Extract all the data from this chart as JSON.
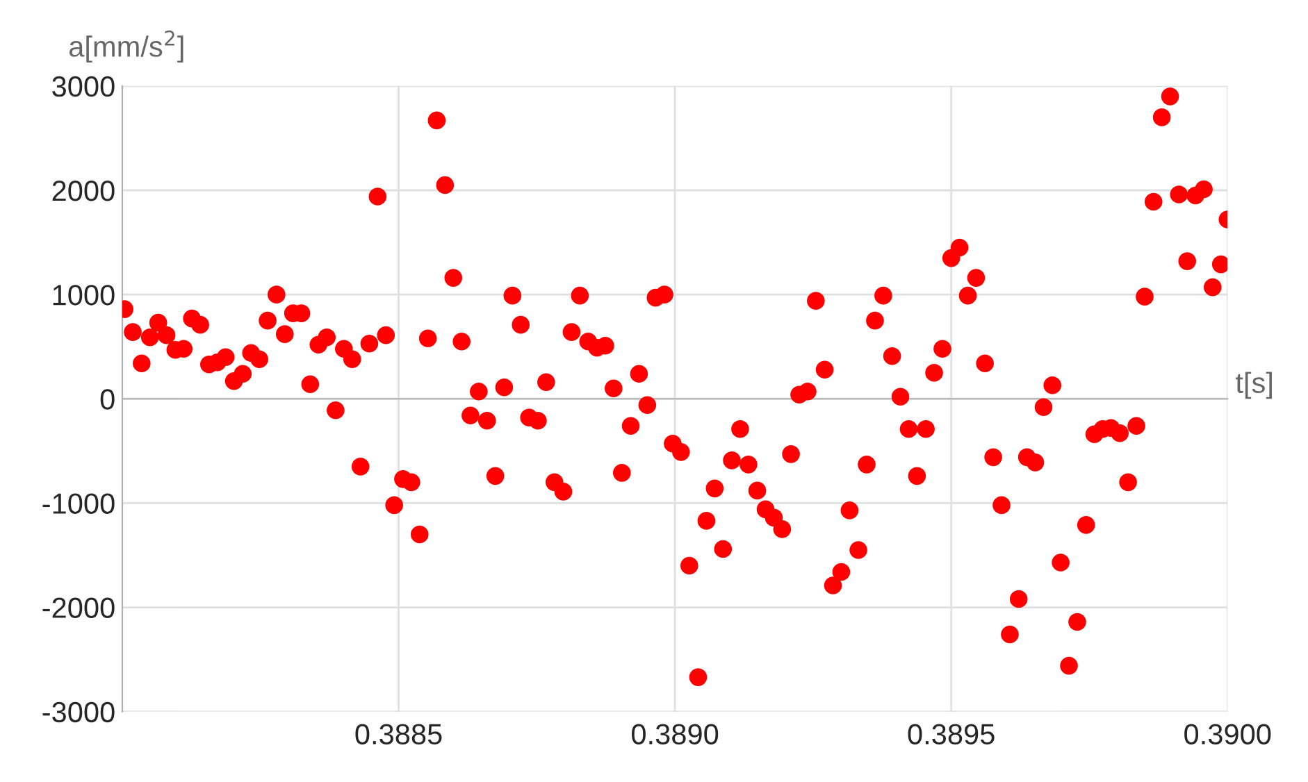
{
  "chart_data": {
    "type": "scatter",
    "xlabel": "t[s]",
    "ylabel": "a[mm/s$^{2}$]",
    "x": [
      0.388004,
      0.388019,
      0.388035,
      0.38805,
      0.388065,
      0.38808,
      0.388096,
      0.388111,
      0.388126,
      0.388141,
      0.388157,
      0.388172,
      0.388187,
      0.388202,
      0.388218,
      0.388233,
      0.388248,
      0.388263,
      0.388279,
      0.388294,
      0.388309,
      0.388324,
      0.38834,
      0.388355,
      0.38837,
      0.388386,
      0.388401,
      0.388416,
      0.388431,
      0.388447,
      0.388462,
      0.388477,
      0.388492,
      0.388508,
      0.388523,
      0.388538,
      0.388553,
      0.388569,
      0.388584,
      0.388599,
      0.388614,
      0.38863,
      0.388645,
      0.38866,
      0.388675,
      0.388691,
      0.388706,
      0.388721,
      0.388736,
      0.388752,
      0.388767,
      0.388782,
      0.388798,
      0.388813,
      0.388828,
      0.388843,
      0.388859,
      0.388874,
      0.388889,
      0.388904,
      0.38892,
      0.388935,
      0.38895,
      0.388965,
      0.388981,
      0.388996,
      0.389011,
      0.389026,
      0.389042,
      0.389057,
      0.389072,
      0.389087,
      0.389103,
      0.389118,
      0.389133,
      0.389149,
      0.389164,
      0.389179,
      0.389194,
      0.38921,
      0.389225,
      0.38924,
      0.389255,
      0.389271,
      0.389286,
      0.389301,
      0.389316,
      0.389332,
      0.389347,
      0.389362,
      0.389377,
      0.389393,
      0.389408,
      0.389423,
      0.389438,
      0.389454,
      0.389469,
      0.389484,
      0.3895,
      0.389515,
      0.38953,
      0.389545,
      0.389561,
      0.389576,
      0.389591,
      0.389606,
      0.389622,
      0.389637,
      0.389652,
      0.389667,
      0.389683,
      0.389698,
      0.389713,
      0.389728,
      0.389744,
      0.389759,
      0.389774,
      0.389789,
      0.389805,
      0.38982,
      0.389835,
      0.38985,
      0.389866,
      0.389881,
      0.389896,
      0.389912,
      0.389927,
      0.389942,
      0.389957,
      0.389973,
      0.389988,
      0.39
    ],
    "series": [
      {
        "color": "#ff0000",
        "values": [
          860,
          640,
          340,
          590,
          730,
          610,
          470,
          480,
          770,
          710,
          330,
          350,
          400,
          170,
          240,
          440,
          380,
          750,
          1000,
          620,
          820,
          820,
          140,
          520,
          590,
          -110,
          480,
          380,
          -650,
          530,
          1940,
          610,
          -1020,
          -770,
          -800,
          -1300,
          580,
          2670,
          2050,
          1160,
          550,
          -160,
          70,
          -210,
          -740,
          110,
          990,
          710,
          -180,
          -210,
          160,
          -800,
          -890,
          640,
          990,
          550,
          490,
          510,
          100,
          -710,
          -260,
          240,
          -60,
          970,
          1000,
          -430,
          -510,
          -1600,
          -2670,
          -1170,
          -860,
          -1440,
          -590,
          -290,
          -630,
          -880,
          -1060,
          -1140,
          -1250,
          -530,
          40,
          70,
          940,
          280,
          -1790,
          -1660,
          -1070,
          -1450,
          -630,
          750,
          990,
          410,
          20,
          -290,
          -740,
          -290,
          250,
          480,
          1350,
          1450,
          990,
          1160,
          340,
          -560,
          -1020,
          -2260,
          -1920,
          -560,
          -610,
          -80,
          130,
          -1570,
          -2560,
          -2140,
          -1210,
          -340,
          -290,
          -280,
          -330,
          -800,
          -260,
          980,
          1890,
          2700,
          2900,
          1960,
          1320,
          1950,
          2010,
          1070,
          1290,
          1720
        ]
      }
    ],
    "xlim": [
      0.388,
      0.39
    ],
    "ylim": [
      -3000,
      3000
    ],
    "xticks": [
      0.3885,
      {
        "value": 0.389,
        "label": "0.3890"
      },
      0.3895,
      {
        "value": 0.39,
        "label": "0.3900"
      }
    ],
    "yticks": [
      -3000,
      -2000,
      -1000,
      0,
      1000,
      2000,
      3000
    ],
    "grid": true,
    "marker": "circle",
    "legend": false
  }
}
